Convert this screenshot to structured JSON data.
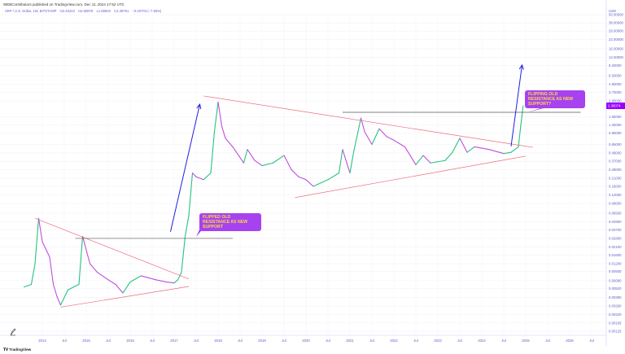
{
  "header": {
    "publisher": "WEBContributors published on TradingView.com, Dec 11, 2024 17:52 UTC",
    "symbol": "XRP / U.S. Dollar, 1W, BITSTAMP",
    "open": "O2.40242",
    "high": "H2.60878",
    "low": "L1.89910",
    "close": "C2.39761",
    "change": "−0.20703 (−7.95%)"
  },
  "footer": {
    "brand": "TradingView"
  },
  "annotations": {
    "callout_2017": "FLIPPED OLD RESISTANCE AS NEW SUPPORT",
    "callout_2024": "FLIPPING OLD RESISTANCE AS NEW SUPPORT?"
  },
  "colors": {
    "up": "#26c281",
    "down": "#c04de0",
    "trendline": "#ef6b7a",
    "level": "#555555",
    "arrow": "#1f1fe0",
    "callout_bg": "#a642f0",
    "callout_text": "#ffd93b",
    "axis_text": "#5a63c9",
    "price_label_bg": "#9b00ff"
  },
  "chart_data": {
    "type": "line",
    "scale": "log",
    "currency_label": "USD",
    "last_price_label": "2.36074",
    "last_price": 2.36,
    "y_ticks": [
      "50.00000",
      "38.00000",
      "29.00000",
      "22.00000",
      "16.00000",
      "12.00000",
      "9.20000",
      "6.50000",
      "4.90000",
      "3.70000",
      "2.80000",
      "1.65000",
      "1.25000",
      "0.95000",
      "0.65000",
      "0.49000",
      "0.37000",
      "0.28000",
      "0.21000",
      "0.16000",
      "0.12000",
      "0.09000",
      "0.06500",
      "0.04900",
      "0.03700",
      "0.02800",
      "0.02100",
      "0.01600",
      "0.01200",
      "0.00930",
      "0.00680",
      "0.00520",
      "0.00390",
      "0.00290",
      "0.00220",
      "0.00165",
      "0.00125"
    ],
    "x_ticks": [
      [
        "2014",
        "2014-01"
      ],
      [
        "Jul",
        "2014-07"
      ],
      [
        "2015",
        "2015-01"
      ],
      [
        "Jul",
        "2015-07"
      ],
      [
        "2016",
        "2016-01"
      ],
      [
        "Jul",
        "2016-07"
      ],
      [
        "2017",
        "2017-01"
      ],
      [
        "Jul",
        "2017-07"
      ],
      [
        "2018",
        "2018-01"
      ],
      [
        "Jul",
        "2018-07"
      ],
      [
        "2019",
        "2019-01"
      ],
      [
        "Jul",
        "2019-07"
      ],
      [
        "2020",
        "2020-01"
      ],
      [
        "Jul",
        "2020-07"
      ],
      [
        "2021",
        "2021-01"
      ],
      [
        "Jul",
        "2021-07"
      ],
      [
        "2022",
        "2022-01"
      ],
      [
        "Jul",
        "2022-07"
      ],
      [
        "2023",
        "2023-01"
      ],
      [
        "Jul",
        "2023-07"
      ],
      [
        "2024",
        "2024-01"
      ],
      [
        "Jul",
        "2024-07"
      ],
      [
        "2025",
        "2025-01"
      ],
      [
        "Jul",
        "2025-07"
      ],
      [
        "2026",
        "2026-01"
      ],
      [
        "Jul",
        "2026-07"
      ]
    ],
    "series": [
      {
        "points": [
          [
            "2013-08",
            0.0055
          ],
          [
            "2013-10",
            0.006
          ],
          [
            "2013-11",
            0.012
          ],
          [
            "2013-12",
            0.055
          ],
          [
            "2014-01",
            0.025
          ],
          [
            "2014-03",
            0.015
          ],
          [
            "2014-04",
            0.006
          ],
          [
            "2014-05",
            0.004
          ],
          [
            "2014-06",
            0.003
          ],
          [
            "2014-08",
            0.005
          ],
          [
            "2014-11",
            0.006
          ],
          [
            "2014-12",
            0.03
          ],
          [
            "2015-02",
            0.012
          ],
          [
            "2015-04",
            0.009
          ],
          [
            "2015-07",
            0.007
          ],
          [
            "2015-09",
            0.006
          ],
          [
            "2015-11",
            0.0045
          ],
          [
            "2016-01",
            0.0065
          ],
          [
            "2016-04",
            0.008
          ],
          [
            "2016-08",
            0.007
          ],
          [
            "2016-11",
            0.0065
          ],
          [
            "2017-01",
            0.0063
          ],
          [
            "2017-02",
            0.007
          ],
          [
            "2017-03",
            0.009
          ],
          [
            "2017-04",
            0.03
          ],
          [
            "2017-05",
            0.06
          ],
          [
            "2017-06",
            0.25
          ],
          [
            "2017-07",
            0.22
          ],
          [
            "2017-09",
            0.2
          ],
          [
            "2017-11",
            0.25
          ],
          [
            "2017-12",
            1.0
          ],
          [
            "2018-01",
            2.7
          ],
          [
            "2018-02",
            1.2
          ],
          [
            "2018-03",
            0.8
          ],
          [
            "2018-05",
            0.6
          ],
          [
            "2018-08",
            0.35
          ],
          [
            "2018-09",
            0.55
          ],
          [
            "2018-11",
            0.38
          ],
          [
            "2019-01",
            0.32
          ],
          [
            "2019-04",
            0.35
          ],
          [
            "2019-07",
            0.45
          ],
          [
            "2019-09",
            0.28
          ],
          [
            "2019-11",
            0.22
          ],
          [
            "2020-01",
            0.2
          ],
          [
            "2020-03",
            0.16
          ],
          [
            "2020-07",
            0.2
          ],
          [
            "2020-10",
            0.25
          ],
          [
            "2020-11",
            0.55
          ],
          [
            "2021-01",
            0.25
          ],
          [
            "2021-02",
            0.5
          ],
          [
            "2021-04",
            1.57
          ],
          [
            "2021-05",
            1.0
          ],
          [
            "2021-07",
            0.65
          ],
          [
            "2021-09",
            1.1
          ],
          [
            "2021-11",
            0.85
          ],
          [
            "2022-01",
            0.75
          ],
          [
            "2022-04",
            0.6
          ],
          [
            "2022-07",
            0.33
          ],
          [
            "2022-09",
            0.45
          ],
          [
            "2022-11",
            0.35
          ],
          [
            "2023-03",
            0.38
          ],
          [
            "2023-05",
            0.5
          ],
          [
            "2023-07",
            0.8
          ],
          [
            "2023-09",
            0.5
          ],
          [
            "2023-11",
            0.6
          ],
          [
            "2024-03",
            0.55
          ],
          [
            "2024-07",
            0.48
          ],
          [
            "2024-09",
            0.5
          ],
          [
            "2024-11",
            0.6
          ],
          [
            "2024-11-20",
            1.2
          ],
          [
            "2024-12-10",
            2.36
          ]
        ]
      }
    ],
    "drawings": {
      "trendlines": [
        {
          "from": [
            "2013-11",
            0.055
          ],
          "to": [
            "2017-05",
            0.0072
          ]
        },
        {
          "from": [
            "2014-06",
            0.0028
          ],
          "to": [
            "2017-05",
            0.0056
          ]
        },
        {
          "from": [
            "2017-09",
            3.3
          ],
          "to": [
            "2025-03",
            0.59
          ]
        },
        {
          "from": [
            "2019-10",
            0.11
          ],
          "to": [
            "2025-01",
            0.44
          ]
        }
      ],
      "levels": [
        {
          "price": 0.028,
          "from": "2014-10",
          "to": "2018-05"
        },
        {
          "price": 1.91,
          "from": "2020-11",
          "to": "2026-04"
        }
      ],
      "arrows": [
        {
          "from": [
            "2016-12",
            0.035
          ],
          "to": [
            "2017-08",
            2.5
          ]
        },
        {
          "from": [
            "2024-09",
            0.61
          ],
          "to": [
            "2024-12",
            9.3
          ]
        }
      ]
    }
  }
}
